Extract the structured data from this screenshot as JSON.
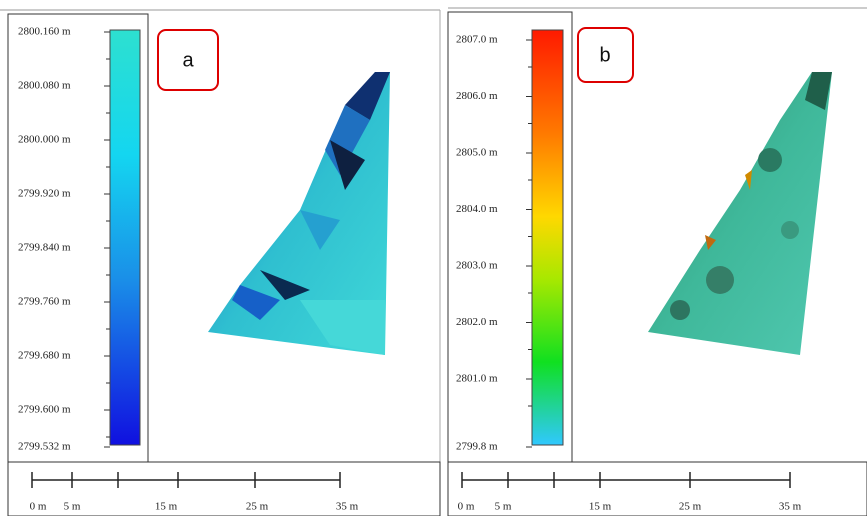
{
  "panels": [
    {
      "label": "a",
      "colorbar": [
        "2800.160 m",
        "2800.080 m",
        "2800.000 m",
        "2799.920 m",
        "2799.840 m",
        "2799.760 m",
        "2799.680 m",
        "2799.600 m",
        "2799.532 m"
      ],
      "scale": [
        "0 m",
        "5 m",
        "15 m",
        "25 m",
        "35 m"
      ]
    },
    {
      "label": "b",
      "colorbar": [
        "2807.0 m",
        "2806.0 m",
        "2805.0 m",
        "2804.0 m",
        "2803.0 m",
        "2802.0 m",
        "2801.0 m",
        "2799.8 m"
      ],
      "scale": [
        "0 m",
        "5 m",
        "15 m",
        "25 m",
        "35 m"
      ]
    }
  ]
}
